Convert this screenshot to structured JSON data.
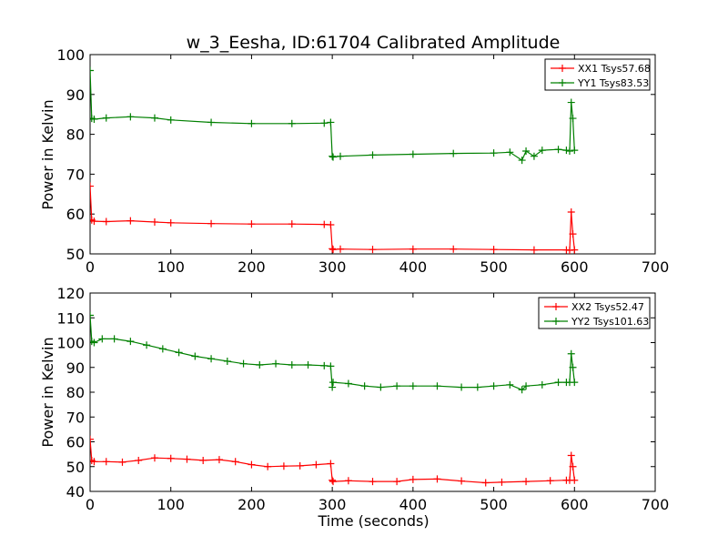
{
  "title": "w_3_Eesha, ID:61704 Calibrated Amplitude",
  "colors": {
    "red": "#ff0000",
    "green": "#008000"
  },
  "chart_data": [
    {
      "type": "line",
      "ylabel": "Power in Kelvin",
      "xlabel": "",
      "xlim": [
        0,
        700
      ],
      "ylim": [
        50,
        100
      ],
      "xticks": [
        0,
        100,
        200,
        300,
        400,
        500,
        600,
        700
      ],
      "yticks": [
        50,
        60,
        70,
        80,
        90,
        100
      ],
      "legend_position": "top-right",
      "series": [
        {
          "name": "XX1 Tsys57.68",
          "color": "#ff0000",
          "x": [
            0,
            2,
            5,
            20,
            50,
            80,
            100,
            150,
            200,
            250,
            290,
            298,
            300,
            301,
            310,
            350,
            400,
            450,
            500,
            550,
            590,
            594,
            596,
            598,
            600
          ],
          "y": [
            67,
            58.5,
            58.2,
            58.1,
            58.3,
            58.0,
            57.8,
            57.6,
            57.5,
            57.5,
            57.4,
            57.3,
            51.3,
            51.1,
            51.2,
            51.1,
            51.2,
            51.2,
            51.1,
            51.0,
            51.0,
            50.9,
            60.5,
            55,
            51.0
          ]
        },
        {
          "name": "YY1 Tsys83.53",
          "color": "#008000",
          "x": [
            0,
            2,
            5,
            20,
            50,
            80,
            100,
            150,
            200,
            250,
            290,
            298,
            300,
            301,
            310,
            350,
            400,
            450,
            500,
            520,
            535,
            540,
            550,
            560,
            580,
            590,
            594,
            596,
            598,
            600
          ],
          "y": [
            96,
            84.0,
            83.8,
            84.1,
            84.4,
            84.1,
            83.6,
            83.0,
            82.7,
            82.7,
            82.8,
            83.0,
            74.5,
            74.3,
            74.5,
            74.8,
            75.0,
            75.2,
            75.3,
            75.5,
            73.5,
            75.8,
            74.5,
            76.0,
            76.2,
            76.0,
            75.8,
            88.0,
            84,
            76.0
          ]
        }
      ]
    },
    {
      "type": "line",
      "ylabel": "Power in Kelvin",
      "xlabel": "Time (seconds)",
      "xlim": [
        0,
        700
      ],
      "ylim": [
        40,
        120
      ],
      "xticks": [
        0,
        100,
        200,
        300,
        400,
        500,
        600,
        700
      ],
      "yticks": [
        40,
        50,
        60,
        70,
        80,
        90,
        100,
        110,
        120
      ],
      "legend_position": "top-right",
      "series": [
        {
          "name": "XX2 Tsys52.47",
          "color": "#ff0000",
          "x": [
            0,
            2,
            5,
            20,
            40,
            60,
            80,
            100,
            120,
            140,
            160,
            180,
            200,
            220,
            240,
            260,
            280,
            298,
            300,
            301,
            320,
            350,
            380,
            400,
            430,
            460,
            490,
            510,
            540,
            570,
            590,
            594,
            596,
            598,
            600
          ],
          "y": [
            61,
            52.5,
            52.0,
            52.0,
            51.8,
            52.5,
            53.5,
            53.3,
            53.0,
            52.5,
            52.8,
            52.0,
            50.8,
            50.0,
            50.2,
            50.3,
            50.8,
            51.2,
            44.5,
            44.0,
            44.3,
            44.0,
            44.0,
            44.8,
            45.0,
            44.2,
            43.5,
            43.7,
            44.0,
            44.3,
            44.5,
            44.5,
            54.5,
            50,
            44.5
          ]
        },
        {
          "name": "YY2 Tsys101.63",
          "color": "#008000",
          "x": [
            0,
            2,
            5,
            15,
            30,
            50,
            70,
            90,
            110,
            130,
            150,
            170,
            190,
            210,
            230,
            250,
            270,
            290,
            298,
            300,
            301,
            320,
            340,
            360,
            380,
            400,
            430,
            460,
            480,
            500,
            520,
            535,
            540,
            560,
            580,
            590,
            594,
            596,
            598,
            600
          ],
          "y": [
            111,
            100.5,
            100.0,
            101.5,
            101.5,
            100.5,
            99.0,
            97.5,
            96.0,
            94.5,
            93.5,
            92.5,
            91.5,
            91.0,
            91.5,
            91.0,
            91.0,
            90.7,
            90.5,
            82.0,
            84.0,
            83.5,
            82.5,
            82.0,
            82.5,
            82.5,
            82.5,
            82.0,
            82.0,
            82.5,
            83.0,
            81.0,
            82.5,
            83.0,
            84.0,
            84.0,
            84.0,
            95.5,
            90,
            84.0
          ]
        }
      ]
    }
  ]
}
